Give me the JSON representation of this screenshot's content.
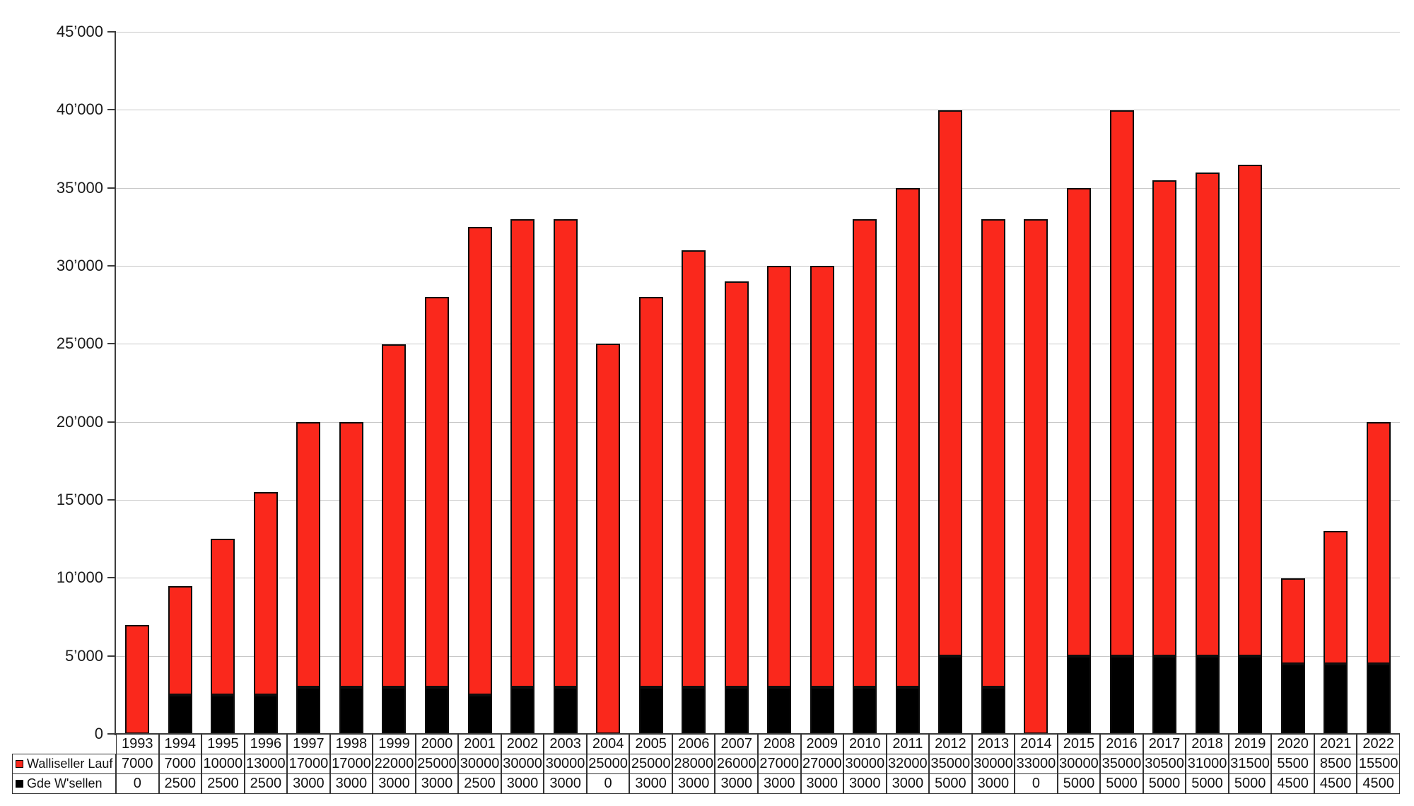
{
  "chart_data": {
    "type": "bar",
    "stacked": true,
    "title": "",
    "xlabel": "",
    "ylabel": "",
    "categories": [
      "1993",
      "1994",
      "1995",
      "1996",
      "1997",
      "1998",
      "1999",
      "2000",
      "2001",
      "2002",
      "2003",
      "2004",
      "2005",
      "2006",
      "2007",
      "2008",
      "2009",
      "2010",
      "2011",
      "2012",
      "2013",
      "2014",
      "2015",
      "2016",
      "2017",
      "2018",
      "2019",
      "2020",
      "2021",
      "2022"
    ],
    "series": [
      {
        "name": "Gde W'sellen",
        "color": "#000000",
        "stack_position": "bottom",
        "values": [
          0,
          2500,
          2500,
          2500,
          3000,
          3000,
          3000,
          3000,
          2500,
          3000,
          3000,
          0,
          3000,
          3000,
          3000,
          3000,
          3000,
          3000,
          3000,
          5000,
          3000,
          0,
          5000,
          5000,
          5000,
          5000,
          5000,
          4500,
          4500,
          4500
        ]
      },
      {
        "name": "Walliseller Lauf",
        "color": "#fa281c",
        "stack_position": "top",
        "values": [
          7000,
          7000,
          10000,
          13000,
          17000,
          17000,
          22000,
          25000,
          30000,
          30000,
          30000,
          25000,
          25000,
          28000,
          26000,
          27000,
          27000,
          30000,
          32000,
          35000,
          30000,
          33000,
          30000,
          35000,
          30500,
          31000,
          31500,
          5500,
          8500,
          15500
        ]
      }
    ],
    "ylim": [
      0,
      45000
    ],
    "grid": true,
    "yticks": [
      {
        "value": 0,
        "label": "0"
      },
      {
        "value": 5000,
        "label": "5’000"
      },
      {
        "value": 10000,
        "label": "10’000"
      },
      {
        "value": 15000,
        "label": "15’000"
      },
      {
        "value": 20000,
        "label": "20’000"
      },
      {
        "value": 25000,
        "label": "25’000"
      },
      {
        "value": 30000,
        "label": "30’000"
      },
      {
        "value": 35000,
        "label": "35’000"
      },
      {
        "value": 40000,
        "label": "40’000"
      },
      {
        "value": 45000,
        "label": "45’000"
      }
    ],
    "legend_position": "table-bottom-left"
  },
  "legend_table": {
    "row_labels": [
      "Walliseller Lauf",
      "Gde W'sellen"
    ]
  },
  "colors": {
    "background": "#ffffff",
    "grid": "#c8c8c8",
    "axis": "#3c3c3c",
    "table_border": "#333333",
    "bar_outline": "#0d0d0d",
    "text": "#111111"
  }
}
